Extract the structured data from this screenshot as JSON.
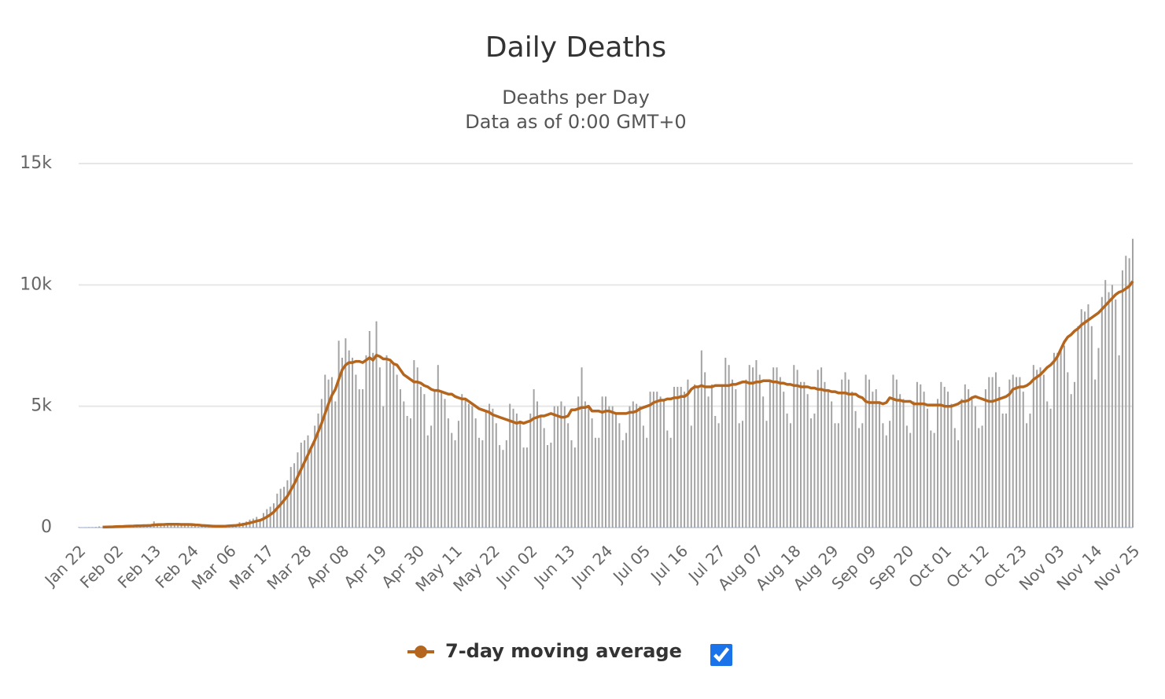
{
  "chart_data": {
    "type": "bar",
    "title": "Daily Deaths",
    "subtitle": [
      "Deaths per Day",
      "Data as of 0:00 GMT+0"
    ],
    "categories": [
      "Jan 22",
      null,
      null,
      null,
      null,
      null,
      null,
      null,
      null,
      null,
      null,
      "Feb 02",
      null,
      null,
      null,
      null,
      null,
      null,
      null,
      null,
      null,
      null,
      "Feb 13",
      null,
      null,
      null,
      null,
      null,
      null,
      null,
      null,
      null,
      null,
      "Feb 24",
      null,
      null,
      null,
      null,
      null,
      null,
      null,
      null,
      null,
      null,
      "Mar 06",
      null,
      null,
      null,
      null,
      null,
      null,
      null,
      null,
      null,
      null,
      "Mar 17",
      null,
      null,
      null,
      null,
      null,
      null,
      null,
      null,
      null,
      null,
      "Mar 28",
      null,
      null,
      null,
      null,
      null,
      null,
      null,
      null,
      null,
      null,
      "Apr 08",
      null,
      null,
      null,
      null,
      null,
      null,
      null,
      null,
      null,
      null,
      "Apr 19",
      null,
      null,
      null,
      null,
      null,
      null,
      null,
      null,
      null,
      null,
      "Apr 30",
      null,
      null,
      null,
      null,
      null,
      null,
      null,
      null,
      null,
      null,
      "May 11",
      null,
      null,
      null,
      null,
      null,
      null,
      null,
      null,
      null,
      null,
      "May 22",
      null,
      null,
      null,
      null,
      null,
      null,
      null,
      null,
      null,
      null,
      "Jun 02",
      null,
      null,
      null,
      null,
      null,
      null,
      null,
      null,
      null,
      null,
      "Jun 13",
      null,
      null,
      null,
      null,
      null,
      null,
      null,
      null,
      null,
      null,
      "Jun 24",
      null,
      null,
      null,
      null,
      null,
      null,
      null,
      null,
      null,
      null,
      "Jul 05",
      null,
      null,
      null,
      null,
      null,
      null,
      null,
      null,
      null,
      null,
      "Jul 16",
      null,
      null,
      null,
      null,
      null,
      null,
      null,
      null,
      null,
      null,
      "Jul 27",
      null,
      null,
      null,
      null,
      null,
      null,
      null,
      null,
      null,
      null,
      "Aug 07",
      null,
      null,
      null,
      null,
      null,
      null,
      null,
      null,
      null,
      null,
      "Aug 18",
      null,
      null,
      null,
      null,
      null,
      null,
      null,
      null,
      null,
      null,
      "Aug 29",
      null,
      null,
      null,
      null,
      null,
      null,
      null,
      null,
      null,
      null,
      "Sep 09",
      null,
      null,
      null,
      null,
      null,
      null,
      null,
      null,
      null,
      null,
      "Sep 20",
      null,
      null,
      null,
      null,
      null,
      null,
      null,
      null,
      null,
      null,
      "Oct 01",
      null,
      null,
      null,
      null,
      null,
      null,
      null,
      null,
      null,
      null,
      "Oct 12",
      null,
      null,
      null,
      null,
      null,
      null,
      null,
      null,
      null,
      null,
      "Oct 23",
      null,
      null,
      null,
      null,
      null,
      null,
      null,
      null,
      null,
      null,
      "Nov 03",
      null,
      null,
      null,
      null,
      null,
      null,
      null,
      null,
      null,
      null,
      "Nov 14",
      null,
      null,
      null,
      null,
      null,
      null,
      null,
      null,
      null,
      null,
      "Nov 25"
    ],
    "series": [
      {
        "color": "#a3a3a3",
        "values": [
          17,
          1,
          8,
          16,
          14,
          26,
          49,
          2,
          38,
          42,
          46,
          45,
          57,
          64,
          66,
          72,
          73,
          86,
          89,
          97,
          108,
          97,
          254,
          143,
          143,
          105,
          98,
          136,
          116,
          118,
          109,
          97,
          150,
          71,
          64,
          38,
          31,
          57,
          64,
          51,
          44,
          64,
          57,
          86,
          100,
          110,
          90,
          220,
          200,
          250,
          330,
          370,
          440,
          330,
          600,
          760,
          860,
          1000,
          1400,
          1600,
          1680,
          1950,
          2500,
          2650,
          3100,
          3500,
          3600,
          3800,
          3200,
          4200,
          4700,
          5300,
          6300,
          6100,
          6200,
          5200,
          7700,
          7000,
          7800,
          7300,
          7000,
          6300,
          5700,
          5700,
          7100,
          8100,
          7200,
          8500,
          6600,
          5000,
          7100,
          6800,
          6700,
          6300,
          5700,
          5200,
          4600,
          4500,
          6900,
          6600,
          5800,
          5500,
          3800,
          4200,
          5700,
          6700,
          5600,
          5300,
          4500,
          3900,
          3600,
          4400,
          5500,
          5300,
          5100,
          5000,
          4500,
          3700,
          3600,
          4800,
          5100,
          4900,
          4300,
          3400,
          3200,
          3600,
          5100,
          4900,
          4700,
          4400,
          3300,
          3300,
          4700,
          5700,
          5200,
          4600,
          4100,
          3400,
          3500,
          5000,
          5000,
          5200,
          5000,
          4300,
          3600,
          3300,
          5400,
          6600,
          5200,
          5000,
          4500,
          3700,
          3700,
          5400,
          5400,
          5000,
          5000,
          4700,
          4300,
          3600,
          3900,
          5000,
          5200,
          5100,
          5000,
          4200,
          3700,
          5600,
          5600,
          5600,
          5400,
          5200,
          4000,
          3700,
          5800,
          5800,
          5800,
          5600,
          6100,
          4200,
          5900,
          5800,
          7300,
          6400,
          5400,
          5900,
          4600,
          4300,
          5900,
          7000,
          6700,
          6100,
          5700,
          4300,
          4400,
          6100,
          6700,
          6600,
          6900,
          6300,
          5400,
          4400,
          6000,
          6600,
          6600,
          6200,
          5600,
          4700,
          4300,
          6700,
          6500,
          6000,
          6000,
          5500,
          4500,
          4700,
          6500,
          6600,
          6000,
          5700,
          5200,
          4300,
          4300,
          6100,
          6400,
          6100,
          5600,
          4800,
          4100,
          4300,
          6300,
          6100,
          5600,
          5700,
          5100,
          4300,
          3800,
          4400,
          6300,
          6100,
          5500,
          5300,
          4200,
          3900,
          5200,
          6000,
          5900,
          5600,
          4900,
          4000,
          3900,
          5300,
          6000,
          5800,
          5600,
          5100,
          4100,
          3600,
          5300,
          5900,
          5700,
          5400,
          5000,
          4100,
          4200,
          5700,
          6200,
          6200,
          6400,
          5800,
          4700,
          4700,
          6100,
          6300,
          6200,
          6200,
          5600,
          4300,
          4700,
          6700,
          6500,
          6600,
          6300,
          5200,
          4900,
          7200,
          7200,
          7300,
          7500,
          6400,
          5500,
          6000,
          8300,
          9000,
          8900,
          9200,
          8300,
          6100,
          7400,
          9500,
          10200,
          9700,
          10000,
          9400,
          7100,
          10600,
          11200,
          11100,
          11900
        ]
      },
      {
        "name": "7-day moving average",
        "type": "line",
        "color": "#b4661f",
        "values": [
          null,
          null,
          null,
          null,
          null,
          null,
          null,
          20,
          25,
          30,
          33,
          40,
          45,
          50,
          55,
          60,
          65,
          70,
          75,
          80,
          85,
          90,
          110,
          120,
          125,
          130,
          135,
          135,
          135,
          135,
          130,
          130,
          130,
          125,
          115,
          105,
          90,
          80,
          70,
          60,
          55,
          55,
          55,
          60,
          70,
          80,
          90,
          110,
          130,
          160,
          190,
          230,
          270,
          300,
          360,
          440,
          530,
          640,
          800,
          950,
          1120,
          1300,
          1550,
          1800,
          2100,
          2400,
          2700,
          3000,
          3300,
          3600,
          3950,
          4300,
          4700,
          5100,
          5450,
          5700,
          6100,
          6500,
          6700,
          6800,
          6800,
          6850,
          6850,
          6800,
          6900,
          7000,
          6900,
          7100,
          7050,
          6950,
          6950,
          6900,
          6750,
          6700,
          6500,
          6300,
          6200,
          6100,
          6000,
          6000,
          5950,
          5850,
          5800,
          5700,
          5650,
          5650,
          5600,
          5550,
          5500,
          5500,
          5400,
          5350,
          5300,
          5300,
          5200,
          5100,
          5000,
          4900,
          4850,
          4800,
          4750,
          4650,
          4600,
          4550,
          4500,
          4450,
          4400,
          4350,
          4300,
          4350,
          4300,
          4350,
          4400,
          4500,
          4550,
          4600,
          4600,
          4650,
          4700,
          4650,
          4600,
          4550,
          4550,
          4600,
          4850,
          4850,
          4900,
          4950,
          4950,
          5000,
          4800,
          4800,
          4800,
          4750,
          4800,
          4800,
          4750,
          4700,
          4700,
          4700,
          4700,
          4750,
          4750,
          4800,
          4900,
          4950,
          5000,
          5050,
          5150,
          5200,
          5250,
          5250,
          5300,
          5300,
          5350,
          5350,
          5400,
          5400,
          5500,
          5700,
          5800,
          5800,
          5850,
          5800,
          5800,
          5800,
          5850,
          5850,
          5850,
          5850,
          5850,
          5900,
          5900,
          5950,
          6000,
          6000,
          5950,
          5950,
          6000,
          6000,
          6050,
          6050,
          6050,
          6000,
          6000,
          5950,
          5950,
          5900,
          5900,
          5850,
          5850,
          5800,
          5800,
          5800,
          5750,
          5750,
          5700,
          5700,
          5650,
          5650,
          5600,
          5600,
          5550,
          5550,
          5550,
          5500,
          5500,
          5500,
          5400,
          5350,
          5200,
          5150,
          5150,
          5150,
          5150,
          5100,
          5150,
          5350,
          5300,
          5250,
          5250,
          5200,
          5200,
          5200,
          5100,
          5100,
          5100,
          5100,
          5050,
          5050,
          5050,
          5050,
          5050,
          5000,
          5000,
          5000,
          5050,
          5100,
          5200,
          5200,
          5250,
          5350,
          5400,
          5350,
          5300,
          5250,
          5200,
          5200,
          5250,
          5300,
          5350,
          5400,
          5500,
          5700,
          5750,
          5800,
          5800,
          5850,
          5950,
          6100,
          6200,
          6300,
          6450,
          6600,
          6700,
          6850,
          7050,
          7350,
          7650,
          7850,
          7950,
          8100,
          8200,
          8350,
          8450,
          8550,
          8650,
          8750,
          8850,
          9000,
          9150,
          9300,
          9450,
          9600,
          9700,
          9750,
          9850,
          9950,
          10150
        ]
      }
    ],
    "ylim": [
      0,
      15000
    ],
    "yticks": [
      0,
      {
        "value": 5000,
        "label": "5k"
      },
      {
        "value": 10000,
        "label": "10k"
      },
      {
        "value": 15000,
        "label": "15k"
      }
    ],
    "grid": true
  }
}
